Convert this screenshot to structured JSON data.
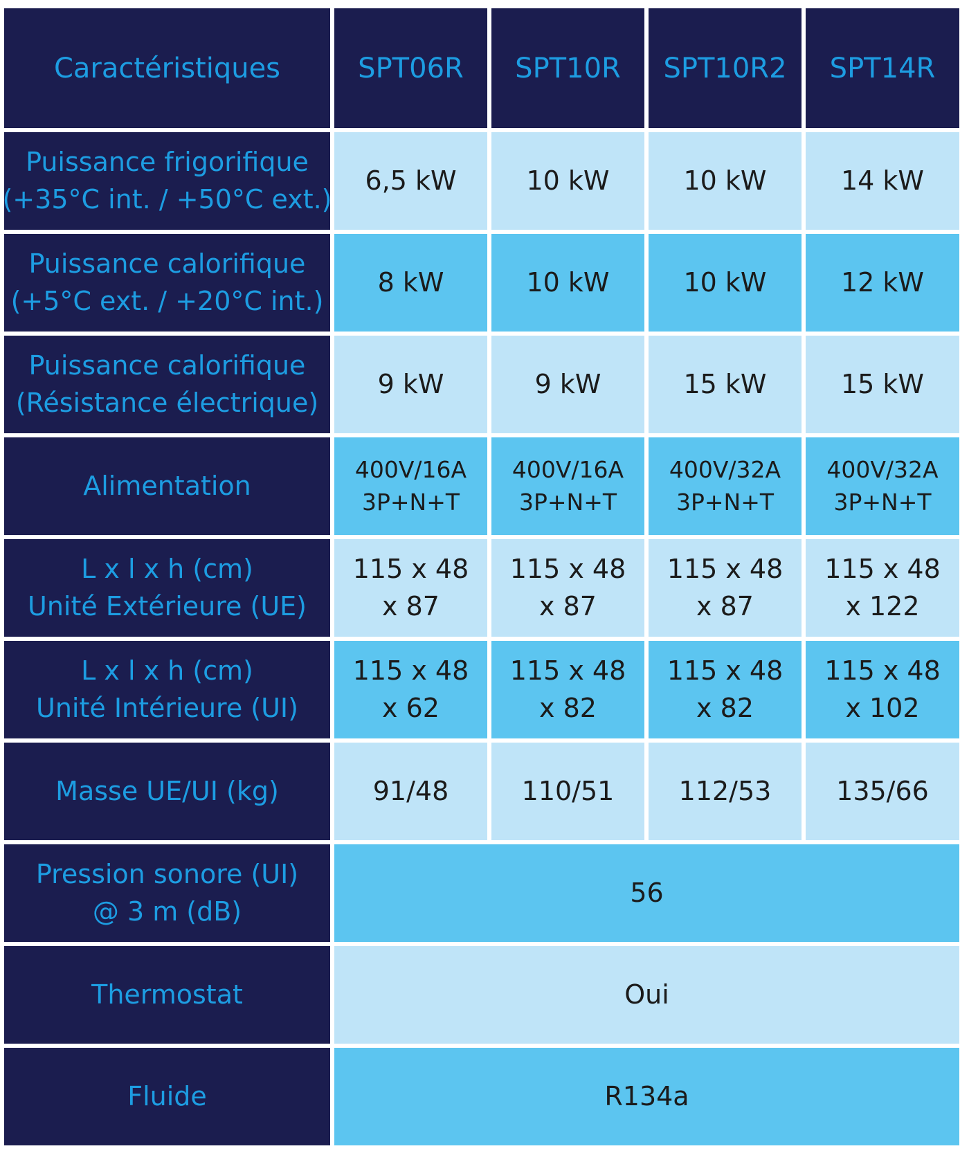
{
  "table": {
    "header": [
      "Caractéristiques",
      "SPT06R",
      "SPT10R",
      "SPT10R2",
      "SPT14R"
    ],
    "rows": [
      {
        "label": [
          "Puissance frigorifique",
          "(+35°C int. / +50°C ext.)"
        ],
        "cells": [
          [
            "6,5 kW"
          ],
          [
            "10 kW"
          ],
          [
            "10 kW"
          ],
          [
            "14 kW"
          ]
        ]
      },
      {
        "label": [
          "Puissance calorifique",
          "(+5°C ext. / +20°C int.)"
        ],
        "cells": [
          [
            "8 kW"
          ],
          [
            "10 kW"
          ],
          [
            "10 kW"
          ],
          [
            "12 kW"
          ]
        ]
      },
      {
        "label": [
          "Puissance calorifique",
          "(Résistance électrique)"
        ],
        "cells": [
          [
            "9 kW"
          ],
          [
            "9 kW"
          ],
          [
            "15 kW"
          ],
          [
            "15 kW"
          ]
        ]
      },
      {
        "label": [
          "Alimentation"
        ],
        "cells": [
          [
            "400V/16A",
            "3P+N+T"
          ],
          [
            "400V/16A",
            "3P+N+T"
          ],
          [
            "400V/32A",
            "3P+N+T"
          ],
          [
            "400V/32A",
            "3P+N+T"
          ]
        ]
      },
      {
        "label": [
          "L x l x h (cm)",
          "Unité Extérieure (UE)"
        ],
        "cells": [
          [
            "115 x 48",
            "x 87"
          ],
          [
            "115 x 48",
            "x 87"
          ],
          [
            "115 x 48",
            "x 87"
          ],
          [
            "115 x 48",
            "x 122"
          ]
        ]
      },
      {
        "label": [
          "L x l x h (cm)",
          "Unité Intérieure (UI)"
        ],
        "cells": [
          [
            "115 x 48",
            "x 62"
          ],
          [
            "115 x 48",
            "x 82"
          ],
          [
            "115 x 48",
            "x 82"
          ],
          [
            "115 x 48",
            "x 102"
          ]
        ]
      },
      {
        "label": [
          "Masse UE/UI (kg)"
        ],
        "cells": [
          [
            "91/48"
          ],
          [
            "110/51"
          ],
          [
            "112/53"
          ],
          [
            "135/66"
          ]
        ]
      },
      {
        "label": [
          "Pression sonore (UI)",
          "@ 3 m (dB)"
        ],
        "cells": [
          [
            "56"
          ]
        ]
      },
      {
        "label": [
          "Thermostat"
        ],
        "cells": [
          [
            "Oui"
          ]
        ]
      },
      {
        "label": [
          "Fluide"
        ],
        "cells": [
          [
            "R134a"
          ]
        ]
      }
    ]
  }
}
